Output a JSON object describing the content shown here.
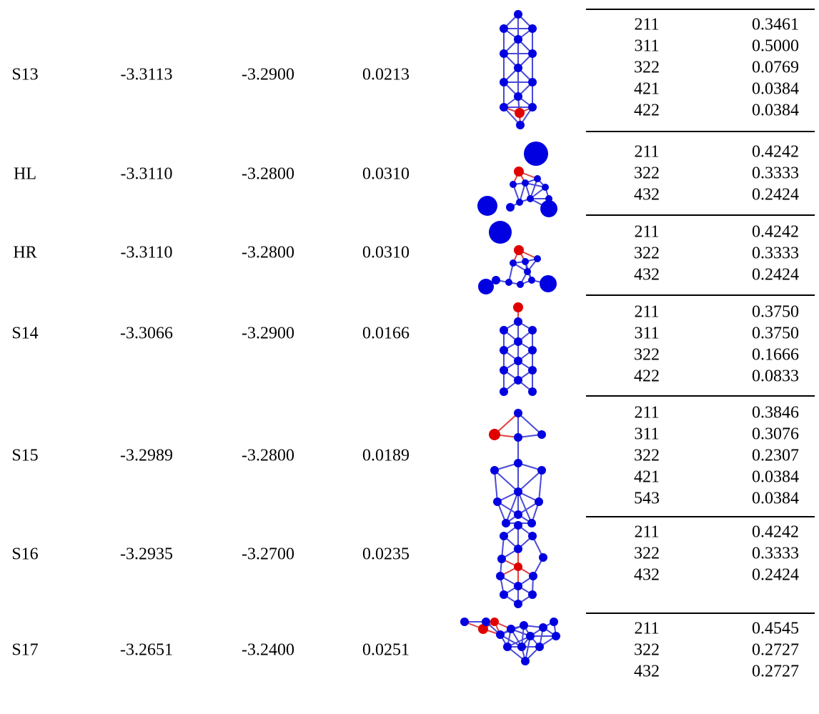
{
  "rows": [
    {
      "label": "S13",
      "e1": "-3.3113",
      "e2": "-3.2900",
      "diff": "0.0213",
      "sub": [
        [
          "211",
          "0.3461"
        ],
        [
          "311",
          "0.5000"
        ],
        [
          "322",
          "0.0769"
        ],
        [
          "421",
          "0.0384"
        ],
        [
          "422",
          "0.0384"
        ]
      ]
    },
    {
      "label": "HL",
      "e1": "-3.3110",
      "e2": "-3.2800",
      "diff": "0.0310",
      "sub": [
        [
          "211",
          "0.4242"
        ],
        [
          "322",
          "0.3333"
        ],
        [
          "432",
          "0.2424"
        ]
      ]
    },
    {
      "label": "HR",
      "e1": "-3.3110",
      "e2": "-3.2800",
      "diff": "0.0310",
      "sub": [
        [
          "211",
          "0.4242"
        ],
        [
          "322",
          "0.3333"
        ],
        [
          "432",
          "0.2424"
        ]
      ]
    },
    {
      "label": "S14",
      "e1": "-3.3066",
      "e2": "-3.2900",
      "diff": "0.0166",
      "sub": [
        [
          "211",
          "0.3750"
        ],
        [
          "311",
          "0.3750"
        ],
        [
          "322",
          "0.1666"
        ],
        [
          "422",
          "0.0833"
        ]
      ]
    },
    {
      "label": "S15",
      "e1": "-3.2989",
      "e2": "-3.2800",
      "diff": "0.0189",
      "sub": [
        [
          "211",
          "0.3846"
        ],
        [
          "311",
          "0.3076"
        ],
        [
          "322",
          "0.2307"
        ],
        [
          "421",
          "0.0384"
        ],
        [
          "543",
          "0.0384"
        ]
      ]
    },
    {
      "label": "S16",
      "e1": "-3.2935",
      "e2": "-3.2700",
      "diff": "0.0235",
      "sub": [
        [
          "211",
          "0.4242"
        ],
        [
          "322",
          "0.3333"
        ],
        [
          "432",
          "0.2424"
        ]
      ]
    },
    {
      "label": "S17",
      "e1": "-3.2651",
      "e2": "-3.2400",
      "diff": "0.0251",
      "sub": [
        [
          "211",
          "0.4545"
        ],
        [
          "322",
          "0.2727"
        ],
        [
          "432",
          "0.2727"
        ]
      ]
    }
  ]
}
